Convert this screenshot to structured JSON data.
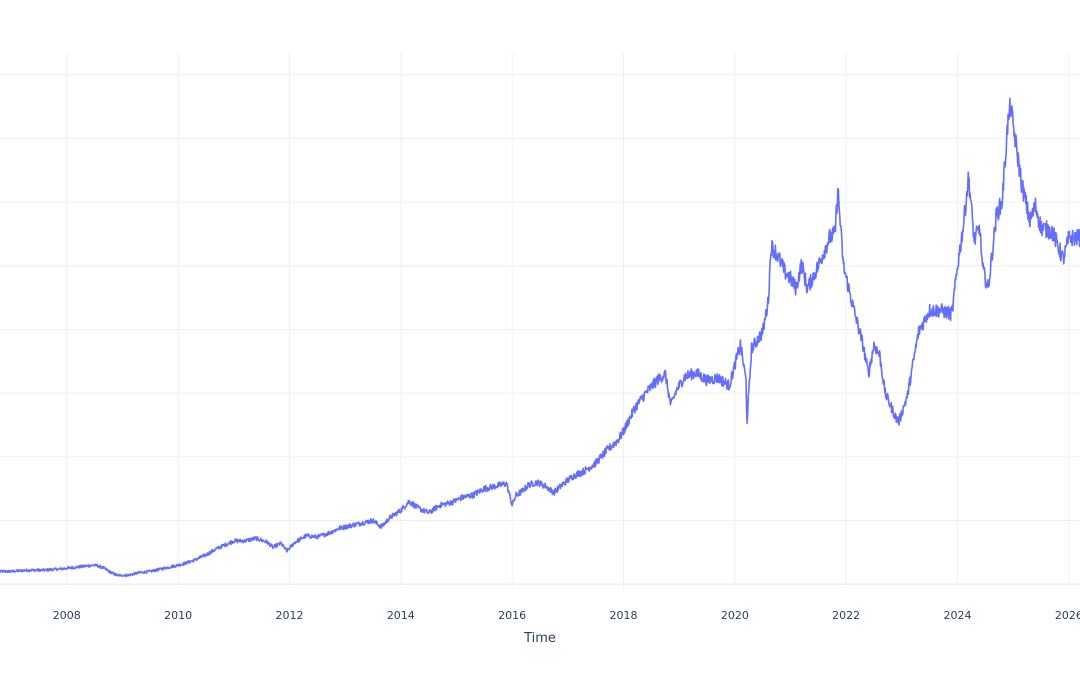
{
  "chart_data": {
    "type": "line",
    "title": "",
    "xlabel": "Time",
    "ylabel": "",
    "x_tick_labels": [
      "2008",
      "2010",
      "2012",
      "2014",
      "2016",
      "2018",
      "2020",
      "2022",
      "2024",
      "2026"
    ],
    "xlim": [
      2006.8,
      2026.2
    ],
    "ylim": [
      -3,
      410
    ],
    "y_gridlines": [
      0,
      50,
      100,
      150,
      200,
      250,
      300,
      350,
      400
    ],
    "grid": true,
    "series": [
      {
        "color": "#636efa",
        "x": [
          2006.8,
          2007.0,
          2007.3,
          2007.6,
          2007.9,
          2008.1,
          2008.3,
          2008.5,
          2008.65,
          2008.8,
          2008.9,
          2009.0,
          2009.1,
          2009.3,
          2009.5,
          2009.7,
          2009.9,
          2010.1,
          2010.3,
          2010.5,
          2010.7,
          2010.9,
          2011.0,
          2011.2,
          2011.4,
          2011.6,
          2011.7,
          2011.85,
          2011.95,
          2012.1,
          2012.3,
          2012.5,
          2012.7,
          2012.9,
          2013.1,
          2013.3,
          2013.5,
          2013.65,
          2013.8,
          2014.0,
          2014.15,
          2014.3,
          2014.5,
          2014.7,
          2014.9,
          2015.1,
          2015.3,
          2015.5,
          2015.7,
          2015.9,
          2016.0,
          2016.07,
          2016.15,
          2016.3,
          2016.45,
          2016.6,
          2016.75,
          2016.95,
          2017.1,
          2017.3,
          2017.5,
          2017.7,
          2017.9,
          2018.0,
          2018.2,
          2018.4,
          2018.6,
          2018.75,
          2018.85,
          2018.95,
          2019.1,
          2019.3,
          2019.5,
          2019.7,
          2019.9,
          2020.0,
          2020.1,
          2020.2,
          2020.22,
          2020.3,
          2020.5,
          2020.6,
          2020.65,
          2020.72,
          2020.8,
          2020.9,
          2021.0,
          2021.1,
          2021.2,
          2021.3,
          2021.5,
          2021.7,
          2021.8,
          2021.85,
          2021.95,
          2022.1,
          2022.3,
          2022.4,
          2022.5,
          2022.6,
          2022.7,
          2022.8,
          2022.9,
          2022.95,
          2023.1,
          2023.3,
          2023.5,
          2023.7,
          2023.9,
          2024.0,
          2024.1,
          2024.2,
          2024.3,
          2024.4,
          2024.45,
          2024.55,
          2024.7,
          2024.8,
          2024.9,
          2024.95,
          2025.05,
          2025.15,
          2025.3,
          2025.4,
          2025.5,
          2025.7,
          2025.9,
          2026.0,
          2026.2
        ],
        "values": [
          10,
          10,
          11,
          11,
          12,
          13,
          14,
          15,
          13,
          9,
          7,
          7,
          7,
          9,
          10,
          12,
          14,
          16,
          19,
          23,
          28,
          32,
          34,
          34,
          36,
          33,
          29,
          32,
          26,
          33,
          38,
          37,
          40,
          44,
          46,
          48,
          50,
          45,
          52,
          58,
          65,
          60,
          56,
          62,
          64,
          68,
          70,
          75,
          77,
          79,
          62,
          70,
          72,
          78,
          80,
          77,
          72,
          80,
          85,
          89,
          95,
          105,
          113,
          120,
          138,
          150,
          160,
          165,
          140,
          152,
          163,
          166,
          160,
          162,
          156,
          172,
          188,
          160,
          128,
          185,
          198,
          222,
          265,
          262,
          255,
          245,
          240,
          232,
          252,
          232,
          250,
          272,
          275,
          310,
          250,
          222,
          188,
          165,
          188,
          180,
          150,
          140,
          130,
          128,
          148,
          198,
          215,
          215,
          212,
          250,
          280,
          320,
          270,
          280,
          248,
          232,
          290,
          300,
          360,
          375,
          345,
          315,
          285,
          297,
          280,
          277,
          255,
          272,
          272
        ]
      }
    ]
  }
}
